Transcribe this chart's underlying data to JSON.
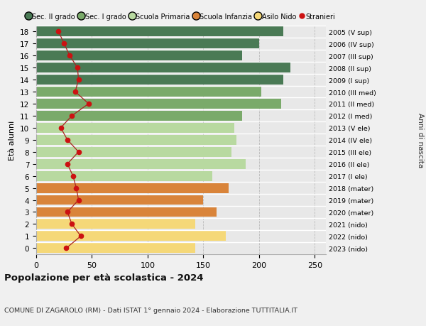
{
  "ages": [
    18,
    17,
    16,
    15,
    14,
    13,
    12,
    11,
    10,
    9,
    8,
    7,
    6,
    5,
    4,
    3,
    2,
    1,
    0
  ],
  "right_labels": [
    "2005 (V sup)",
    "2006 (IV sup)",
    "2007 (III sup)",
    "2008 (II sup)",
    "2009 (I sup)",
    "2010 (III med)",
    "2011 (II med)",
    "2012 (I med)",
    "2013 (V ele)",
    "2014 (IV ele)",
    "2015 (III ele)",
    "2016 (II ele)",
    "2017 (I ele)",
    "2018 (mater)",
    "2019 (mater)",
    "2020 (mater)",
    "2021 (nido)",
    "2022 (nido)",
    "2023 (nido)"
  ],
  "bar_values": [
    222,
    200,
    185,
    228,
    222,
    202,
    220,
    185,
    178,
    180,
    175,
    188,
    158,
    173,
    150,
    162,
    143,
    170,
    143
  ],
  "bar_colors": [
    "#4a7a55",
    "#4a7a55",
    "#4a7a55",
    "#4a7a55",
    "#4a7a55",
    "#7aaa6a",
    "#7aaa6a",
    "#7aaa6a",
    "#b8d9a0",
    "#b8d9a0",
    "#b8d9a0",
    "#b8d9a0",
    "#b8d9a0",
    "#d9843a",
    "#d9843a",
    "#d9843a",
    "#f5d878",
    "#f5d878",
    "#f5d878"
  ],
  "stranieri_values": [
    20,
    25,
    30,
    37,
    38,
    35,
    47,
    32,
    22,
    28,
    38,
    28,
    33,
    36,
    38,
    28,
    32,
    40,
    27
  ],
  "legend_labels": [
    "Sec. II grado",
    "Sec. I grado",
    "Scuola Primaria",
    "Scuola Infanzia",
    "Asilo Nido",
    "Stranieri"
  ],
  "legend_colors": [
    "#4a7a55",
    "#7aaa6a",
    "#b8d9a0",
    "#d9843a",
    "#f5d878",
    "#cc1111"
  ],
  "title_bold": "Popolazione per età scolastica - 2024",
  "subtitle": "COMUNE DI ZAGAROLO (RM) - Dati ISTAT 1° gennaio 2024 - Elaborazione TUTTITALIA.IT",
  "ylabel_left": "Età alunni",
  "ylabel_right": "Anni di nascita",
  "xlim": [
    0,
    260
  ],
  "xticks": [
    0,
    50,
    100,
    150,
    200,
    250
  ],
  "bg_color": "#f0f0f0",
  "plot_bg_color": "#e8e8e8",
  "stranieri_color": "#cc1111",
  "stranieri_line_color": "#aa2222"
}
